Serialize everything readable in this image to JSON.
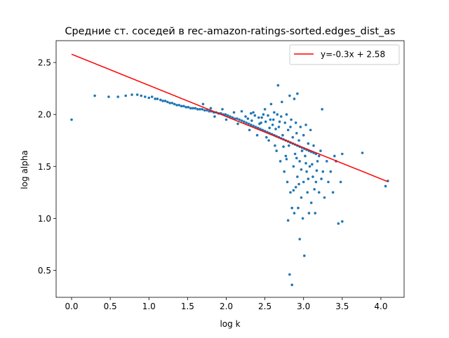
{
  "chart_data": {
    "type": "scatter",
    "title": "Средние ст. соседей в rec-amazon-ratings-sorted.edges_dist_as",
    "xlabel": "log k",
    "ylabel": "log alpha",
    "xlim": [
      -0.2,
      4.3
    ],
    "ylim": [
      0.24,
      2.71
    ],
    "x_ticks": [
      0.0,
      0.5,
      1.0,
      1.5,
      2.0,
      2.5,
      3.0,
      3.5,
      4.0
    ],
    "x_tick_labels": [
      "0.0",
      "0.5",
      "1.0",
      "1.5",
      "2.0",
      "2.5",
      "3.0",
      "3.5",
      "4.0"
    ],
    "y_ticks": [
      0.5,
      1.0,
      1.5,
      2.0,
      2.5
    ],
    "y_tick_labels": [
      "0.5",
      "1.0",
      "1.5",
      "2.0",
      "2.5"
    ],
    "grid": false,
    "legend_position": "top-right",
    "series": [
      {
        "name": "",
        "kind": "scatter",
        "color": "#1f77b4",
        "points": [
          [
            0.0,
            1.95
          ],
          [
            0.3,
            2.18
          ],
          [
            0.48,
            2.17
          ],
          [
            0.6,
            2.17
          ],
          [
            0.7,
            2.18
          ],
          [
            0.78,
            2.19
          ],
          [
            0.85,
            2.19
          ],
          [
            0.9,
            2.18
          ],
          [
            0.95,
            2.17
          ],
          [
            1.0,
            2.16
          ],
          [
            1.04,
            2.17
          ],
          [
            1.08,
            2.15
          ],
          [
            1.11,
            2.15
          ],
          [
            1.15,
            2.14
          ],
          [
            1.18,
            2.13
          ],
          [
            1.21,
            2.13
          ],
          [
            1.24,
            2.12
          ],
          [
            1.27,
            2.11
          ],
          [
            1.3,
            2.11
          ],
          [
            1.33,
            2.1
          ],
          [
            1.36,
            2.09
          ],
          [
            1.39,
            2.09
          ],
          [
            1.42,
            2.08
          ],
          [
            1.45,
            2.08
          ],
          [
            1.48,
            2.07
          ],
          [
            1.51,
            2.07
          ],
          [
            1.54,
            2.06
          ],
          [
            1.57,
            2.06
          ],
          [
            1.6,
            2.06
          ],
          [
            1.63,
            2.05
          ],
          [
            1.66,
            2.05
          ],
          [
            1.69,
            2.05
          ],
          [
            1.72,
            2.04
          ],
          [
            1.75,
            2.04
          ],
          [
            1.78,
            2.03
          ],
          [
            1.81,
            2.03
          ],
          [
            1.84,
            2.02
          ],
          [
            1.87,
            2.02
          ],
          [
            1.9,
            2.01
          ],
          [
            1.93,
            2.01
          ],
          [
            1.96,
            2.0
          ],
          [
            1.99,
            2.0
          ],
          [
            2.02,
            1.99
          ],
          [
            2.05,
            1.98
          ],
          [
            2.08,
            1.97
          ],
          [
            2.11,
            1.96
          ],
          [
            2.14,
            1.96
          ],
          [
            2.17,
            1.95
          ],
          [
            2.2,
            1.94
          ],
          [
            2.23,
            1.93
          ],
          [
            2.26,
            1.92
          ],
          [
            2.29,
            1.91
          ],
          [
            2.32,
            1.9
          ],
          [
            2.35,
            1.89
          ],
          [
            2.38,
            1.88
          ],
          [
            2.41,
            1.87
          ],
          [
            2.44,
            1.86
          ],
          [
            2.47,
            1.85
          ],
          [
            2.5,
            1.84
          ],
          [
            2.53,
            1.83
          ],
          [
            2.56,
            1.82
          ],
          [
            2.59,
            1.81
          ],
          [
            2.62,
            1.8
          ],
          [
            2.65,
            1.79
          ],
          [
            2.68,
            1.78
          ],
          [
            2.71,
            1.77
          ],
          [
            2.74,
            1.76
          ],
          [
            2.77,
            1.75
          ],
          [
            2.8,
            1.74
          ],
          [
            2.83,
            1.73
          ],
          [
            2.86,
            1.72
          ],
          [
            2.89,
            1.71
          ],
          [
            2.92,
            1.7
          ],
          [
            2.95,
            1.69
          ],
          [
            2.98,
            1.68
          ],
          [
            3.01,
            1.67
          ],
          [
            3.04,
            1.66
          ],
          [
            3.07,
            1.65
          ],
          [
            3.1,
            1.64
          ],
          [
            3.13,
            1.63
          ],
          [
            3.16,
            1.62
          ],
          [
            3.2,
            1.6
          ],
          [
            1.7,
            2.1
          ],
          [
            1.8,
            2.06
          ],
          [
            1.85,
            1.98
          ],
          [
            1.95,
            2.05
          ],
          [
            2.0,
            1.95
          ],
          [
            2.1,
            2.02
          ],
          [
            2.15,
            1.91
          ],
          [
            2.2,
            2.03
          ],
          [
            2.25,
            1.98
          ],
          [
            2.3,
            1.85
          ],
          [
            2.32,
            2.01
          ],
          [
            2.35,
            2.02
          ],
          [
            2.4,
            1.8
          ],
          [
            2.42,
            1.97
          ],
          [
            2.45,
            1.92
          ],
          [
            2.48,
            2.0
          ],
          [
            2.5,
            2.05
          ],
          [
            2.52,
            1.78
          ],
          [
            2.55,
            1.75
          ],
          [
            2.57,
            1.95
          ],
          [
            2.58,
            2.1
          ],
          [
            2.6,
            1.9
          ],
          [
            2.62,
            2.02
          ],
          [
            2.63,
            1.7
          ],
          [
            2.65,
            1.65
          ],
          [
            2.66,
            2.0
          ],
          [
            2.67,
            2.28
          ],
          [
            2.68,
            1.88
          ],
          [
            2.7,
            1.55
          ],
          [
            2.71,
            1.98
          ],
          [
            2.72,
            2.12
          ],
          [
            2.73,
            1.8
          ],
          [
            2.75,
            1.45
          ],
          [
            2.76,
            1.92
          ],
          [
            2.77,
            1.6
          ],
          [
            2.78,
            2.0
          ],
          [
            2.79,
            1.35
          ],
          [
            2.8,
            1.85
          ],
          [
            2.8,
            0.98
          ],
          [
            2.81,
            1.7
          ],
          [
            2.82,
            2.18
          ],
          [
            2.82,
            0.46
          ],
          [
            2.83,
            1.25
          ],
          [
            2.84,
            1.95
          ],
          [
            2.85,
            1.1
          ],
          [
            2.85,
            0.36
          ],
          [
            2.86,
            1.78
          ],
          [
            2.87,
            1.5
          ],
          [
            2.88,
            2.15
          ],
          [
            2.88,
            1.05
          ],
          [
            2.89,
            1.62
          ],
          [
            2.9,
            1.3
          ],
          [
            2.9,
            1.92
          ],
          [
            2.91,
            1.82
          ],
          [
            2.92,
            1.4
          ],
          [
            2.92,
            2.2
          ],
          [
            2.93,
            1.1
          ],
          [
            2.94,
            1.75
          ],
          [
            2.95,
            1.55
          ],
          [
            2.95,
            0.8
          ],
          [
            2.96,
            1.88
          ],
          [
            2.97,
            1.2
          ],
          [
            2.98,
            1.65
          ],
          [
            2.99,
            1.0
          ],
          [
            3.0,
            1.8
          ],
          [
            3.0,
            1.35
          ],
          [
            3.01,
            0.64
          ],
          [
            3.02,
            1.6
          ],
          [
            3.03,
            1.9
          ],
          [
            3.04,
            1.45
          ],
          [
            3.05,
            1.25
          ],
          [
            3.06,
            1.72
          ],
          [
            3.07,
            1.05
          ],
          [
            3.08,
            1.5
          ],
          [
            3.09,
            1.85
          ],
          [
            3.1,
            1.15
          ],
          [
            3.12,
            1.4
          ],
          [
            3.13,
            1.7
          ],
          [
            3.15,
            1.05
          ],
          [
            3.16,
            1.35
          ],
          [
            3.18,
            1.55
          ],
          [
            3.2,
            1.25
          ],
          [
            3.22,
            1.65
          ],
          [
            3.24,
            2.05
          ],
          [
            3.25,
            1.45
          ],
          [
            3.27,
            1.2
          ],
          [
            3.3,
            1.55
          ],
          [
            3.32,
            1.35
          ],
          [
            3.35,
            1.45
          ],
          [
            3.38,
            1.25
          ],
          [
            3.4,
            1.6
          ],
          [
            3.42,
            1.55
          ],
          [
            3.45,
            0.95
          ],
          [
            3.48,
            1.35
          ],
          [
            3.5,
            0.97
          ],
          [
            3.5,
            1.62
          ],
          [
            3.76,
            1.63
          ],
          [
            4.06,
            1.31
          ],
          [
            4.09,
            1.36
          ],
          [
            2.28,
            1.96
          ],
          [
            2.33,
            1.94
          ],
          [
            2.37,
            1.99
          ],
          [
            2.43,
            1.91
          ],
          [
            2.46,
            1.97
          ],
          [
            2.51,
            1.93
          ],
          [
            2.54,
            1.99
          ],
          [
            2.56,
            1.87
          ],
          [
            2.61,
            1.95
          ],
          [
            2.64,
            1.86
          ],
          [
            2.69,
            1.93
          ],
          [
            2.74,
            1.69
          ],
          [
            2.78,
            1.57
          ],
          [
            2.83,
            1.88
          ],
          [
            2.87,
            1.27
          ],
          [
            2.91,
            1.58
          ],
          [
            2.94,
            1.33
          ],
          [
            2.97,
            1.47
          ],
          [
            3.03,
            1.53
          ],
          [
            3.06,
            1.38
          ],
          [
            3.11,
            1.52
          ],
          [
            3.14,
            1.28
          ],
          [
            3.17,
            1.46
          ],
          [
            3.23,
            1.38
          ]
        ]
      }
    ],
    "fit_line": {
      "label": "y=-0.3x + 2.58",
      "color": "#ff0000",
      "slope": -0.3,
      "intercept": 2.58,
      "x_range": [
        0.0,
        4.09
      ]
    }
  }
}
